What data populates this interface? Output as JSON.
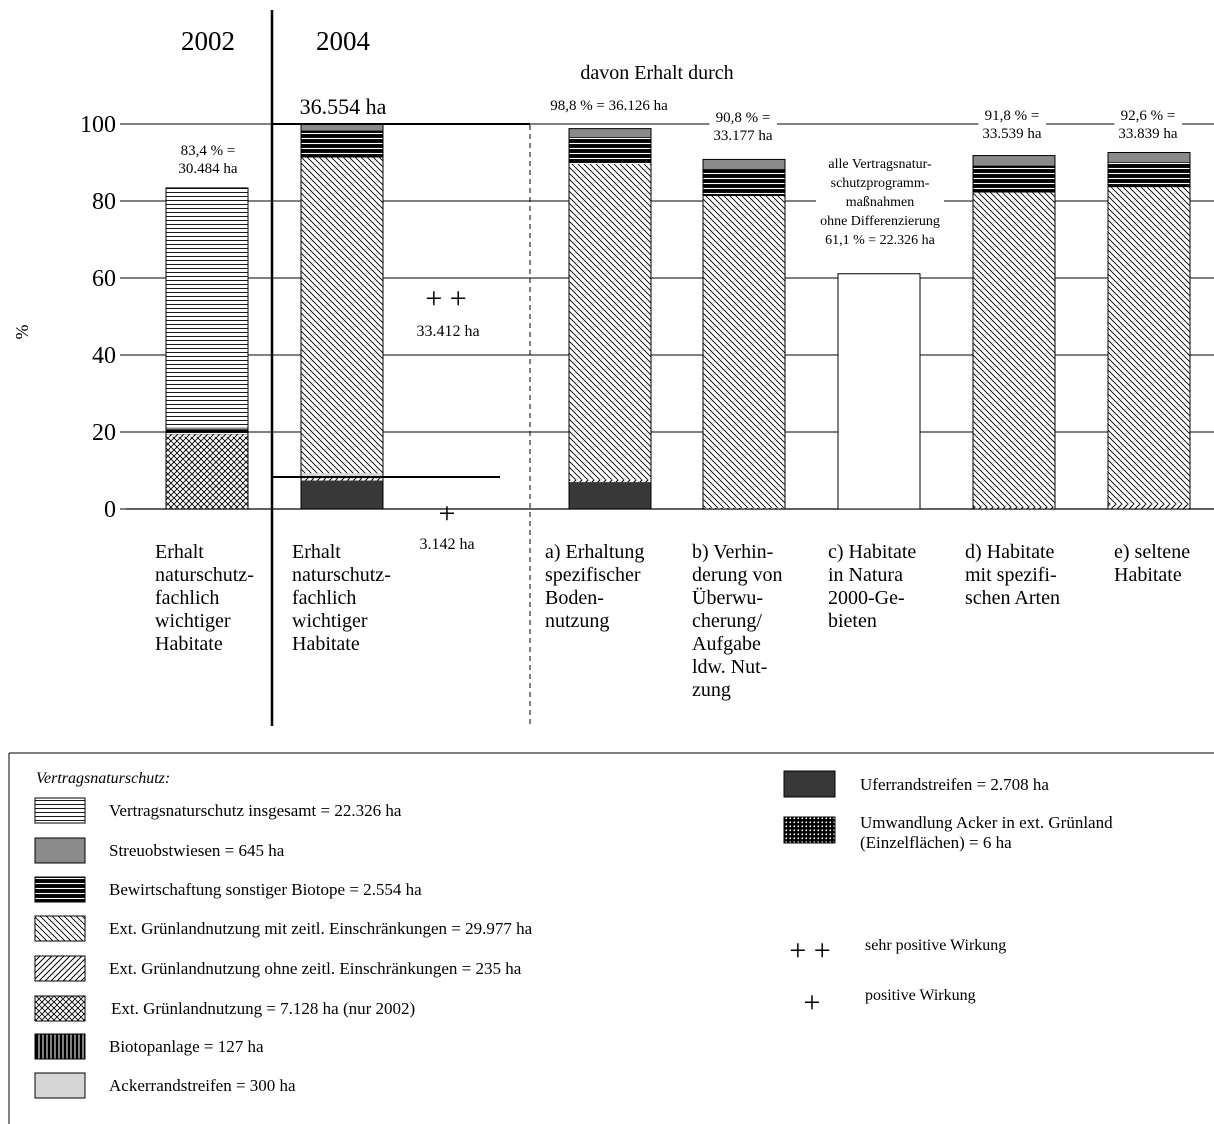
{
  "chart_data": {
    "type": "bar",
    "ylabel": "%",
    "ylim": [
      0,
      100
    ],
    "yticks": [
      "0",
      "20",
      "40",
      "60",
      "80",
      "100"
    ],
    "grid": true,
    "year_labels": [
      "2002",
      "2004"
    ],
    "header": "davon Erhalt durch",
    "total_label": "36.554 ha",
    "categories": [
      {
        "lines": [
          "Erhalt",
          "naturschutz-",
          "fachlich",
          "wichtiger",
          "Habitate"
        ]
      },
      {
        "lines": [
          "Erhalt",
          "naturschutz-",
          "fachlich",
          "wichtiger",
          "Habitate"
        ]
      },
      {
        "lines": [
          "a) Erhaltung",
          "spezifischer",
          "Boden-",
          "nutzung"
        ]
      },
      {
        "lines": [
          "b) Verhin-",
          "derung von",
          "Überwu-",
          "cherung/",
          "Aufgabe",
          "ldw. Nut-",
          "zung"
        ]
      },
      {
        "lines": [
          "c) Habitate",
          "in Natura",
          "2000-Ge-",
          "bieten"
        ]
      },
      {
        "lines": [
          "d) Habitate",
          "mit spezifi-",
          "schen Arten"
        ]
      },
      {
        "lines": [
          "e) seltene",
          "Habitate"
        ]
      }
    ],
    "bars": [
      {
        "total": 83.4,
        "label_lines": [
          "83,4 % =",
          "30.484 ha"
        ],
        "segments": [
          {
            "key": "ext_gruen_2002",
            "value": 18.8
          },
          {
            "key": "ext_ohne",
            "value": 0.6
          },
          {
            "key": "bewirtschaftung",
            "value": 1.3
          },
          {
            "key": "streuobst",
            "value": 0.5
          },
          {
            "key": "vns_gesamt",
            "value": 62.2
          }
        ]
      },
      {
        "total": 100,
        "label_lines": [],
        "segments": [
          {
            "key": "uferrand",
            "value": 7.4
          },
          {
            "key": "ext_ohne",
            "value": 0.6
          },
          {
            "key": "acker_umwandlung",
            "value": 0.2
          },
          {
            "key": "biotopanlage",
            "value": 0.3
          },
          {
            "key": "ackerrand",
            "value": 0.8
          },
          {
            "key": "ext_mit",
            "value": 82.0
          },
          {
            "key": "bewirtschaftung",
            "value": 7.0
          },
          {
            "key": "streuobst",
            "value": 1.7
          }
        ]
      },
      {
        "total": 98.8,
        "label_lines": [
          "98,8 % = 36.126 ha"
        ],
        "segments": [
          {
            "key": "uferrand",
            "value": 7.0
          },
          {
            "key": "ext_ohne",
            "value": 0.6
          },
          {
            "key": "ext_mit",
            "value": 82.0
          },
          {
            "key": "bewirtschaftung",
            "value": 7.0
          },
          {
            "key": "streuobst",
            "value": 2.2
          }
        ]
      },
      {
        "total": 90.8,
        "label_lines": [
          "90,8 % =",
          "33.177 ha"
        ],
        "segments": [
          {
            "key": "ext_ohne",
            "value": 0.3
          },
          {
            "key": "ext_mit",
            "value": 81.0
          },
          {
            "key": "bewirtschaftung",
            "value": 7.0
          },
          {
            "key": "streuobst",
            "value": 2.5
          }
        ]
      },
      {
        "total": 61.1,
        "label_lines": [
          "alle Vertragsnatur-",
          "schutzprogramm-",
          "maßnahmen",
          "ohne Differenzierung",
          "61,1 % = 22.326 ha"
        ],
        "segments": [
          {
            "key": "blank",
            "value": 61.1
          }
        ]
      },
      {
        "total": 91.8,
        "label_lines": [
          "91,8 % =",
          "33.539 ha"
        ],
        "segments": [
          {
            "key": "ext_ohne",
            "value": 0.6
          },
          {
            "key": "ext_mit",
            "value": 81.6
          },
          {
            "key": "bewirtschaftung",
            "value": 7.0
          },
          {
            "key": "streuobst",
            "value": 2.6
          }
        ]
      },
      {
        "total": 92.6,
        "label_lines": [
          "92,6 % =",
          "33.839 ha"
        ],
        "segments": [
          {
            "key": "ext_ohne",
            "value": 1.2
          },
          {
            "key": "ext_mit",
            "value": 82.4
          },
          {
            "key": "bewirtschaftung",
            "value": 6.5
          },
          {
            "key": "streuobst",
            "value": 2.5
          }
        ]
      }
    ],
    "annotations": [
      {
        "symbol": "+ +",
        "label": "33.412 ha"
      },
      {
        "symbol": "+",
        "label": "3.142 ha"
      }
    ]
  },
  "legend": {
    "title": "Vertragsnaturschutz:",
    "left": [
      {
        "key": "vns_gesamt",
        "label": "Vertragsnaturschutz insgesamt = 22.326 ha"
      },
      {
        "key": "streuobst",
        "label": "Streuobstwiesen = 645 ha"
      },
      {
        "key": "bewirtschaftung",
        "label": "Bewirtschaftung sonstiger Biotope = 2.554 ha"
      },
      {
        "key": "ext_mit",
        "label": "Ext. Grünlandnutzung mit zeitl. Einschränkungen = 29.977 ha"
      },
      {
        "key": "ext_ohne",
        "label": "Ext. Grünlandnutzung ohne zeitl. Einschränkungen = 235 ha"
      },
      {
        "key": "ext_gruen_2002",
        "label": "Ext. Grünlandnutzung = 7.128 ha (nur 2002)"
      },
      {
        "key": "biotopanlage",
        "label": "Biotopanlage = 127 ha"
      },
      {
        "key": "ackerrand",
        "label": "Ackerrandstreifen = 300 ha"
      }
    ],
    "right": [
      {
        "key": "uferrand",
        "label_lines": [
          "Uferrandstreifen = 2.708 ha"
        ]
      },
      {
        "key": "acker_umwandlung",
        "label_lines": [
          "Umwandlung Acker in ext. Grünland",
          "(Einzelflächen) = 6 ha"
        ]
      }
    ],
    "effects": [
      {
        "symbol": "+ +",
        "label": "sehr positive Wirkung"
      },
      {
        "symbol": "+",
        "label": "positive Wirkung"
      }
    ]
  }
}
